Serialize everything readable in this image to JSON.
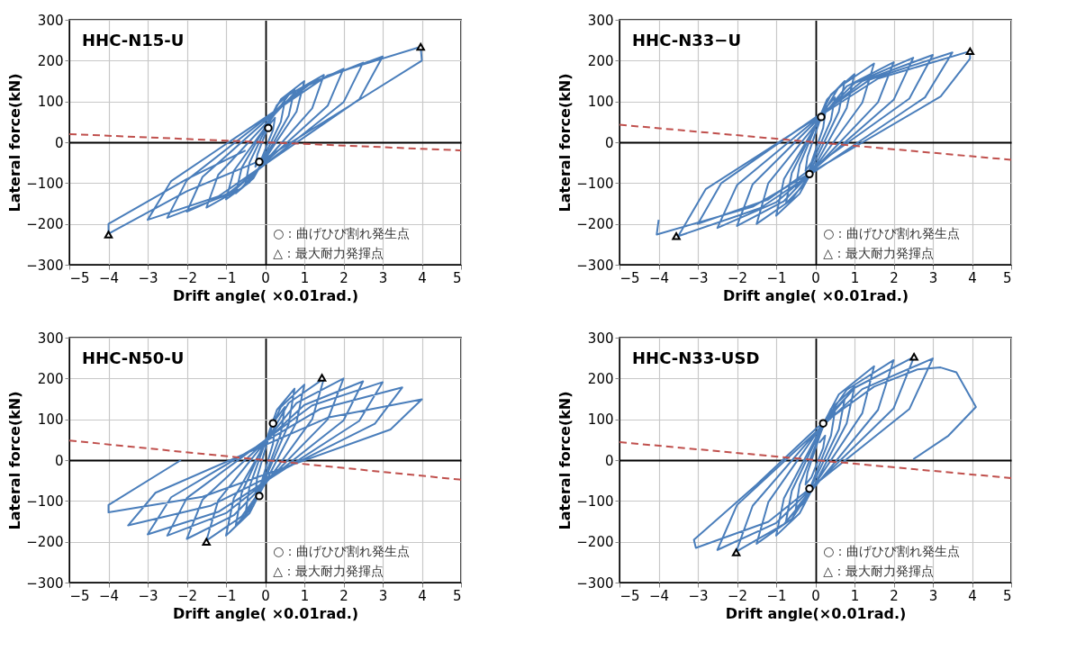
{
  "chart_data": [
    {
      "type": "line",
      "title": "HHC-N15-U",
      "xlabel": "Drift angle( ×0.01rad.)",
      "ylabel": "Lateral force(kN)",
      "xlim": [
        -5,
        5
      ],
      "xticks": [
        -5,
        -4,
        -3,
        -2,
        -1,
        0,
        1,
        2,
        3,
        4,
        5
      ],
      "ylim": [
        -300,
        300
      ],
      "yticks": [
        -300,
        -200,
        -100,
        0,
        100,
        200,
        300
      ],
      "grid": true,
      "annotations": [
        "○：曲げひび割れ発生点",
        "△：最大耐力発揮点"
      ],
      "series": [
        {
          "type": "line",
          "color": "#4a7ebb",
          "line_style": "solid",
          "x": [
            0.1,
            0.25,
            0.2,
            -0.1,
            -0.25,
            -0.2,
            0.2,
            0.5,
            0.4,
            -0.2,
            -0.5,
            -0.4,
            0.3,
            0.75,
            0.6,
            -0.3,
            -0.75,
            -0.6,
            0.4,
            1,
            0.8,
            -0.4,
            -1,
            -0.8,
            0.6,
            1.5,
            1.2,
            -0.6,
            -1.5,
            -1.2,
            0.8,
            2,
            1.6,
            -0.8,
            -2,
            -1.6,
            1,
            2.5,
            2,
            -1,
            -2.5,
            -2,
            1.2,
            3,
            2.4,
            -1.2,
            -3,
            -2.4,
            1.6,
            3.97,
            4,
            2,
            0,
            -2,
            -4,
            -4,
            -2,
            -0.5
          ],
          "values": [
            42,
            60,
            30,
            -42,
            -60,
            -30,
            70,
            100,
            50,
            -70,
            -100,
            -50,
            91,
            130,
            65,
            -88,
            -125,
            -63,
            105,
            150,
            75,
            -98,
            -140,
            -70,
            116,
            165,
            83,
            -112,
            -160,
            -80,
            126,
            180,
            90,
            -119,
            -170,
            -85,
            137,
            195,
            98,
            -130,
            -185,
            -93,
            147,
            210,
            105,
            -133,
            -190,
            -95,
            164,
            234,
            200,
            80,
            -40,
            -120,
            -224,
            -200,
            -90,
            -20
          ]
        },
        {
          "type": "line",
          "color": "#c0504d",
          "line_style": "dashed",
          "x": [
            -5,
            5
          ],
          "values": [
            20,
            -20
          ]
        },
        {
          "type": "scatter",
          "marker": "circle",
          "color": "#000000",
          "x": [
            0.08,
            -0.15
          ],
          "values": [
            35,
            -48
          ]
        },
        {
          "type": "scatter",
          "marker": "triangle",
          "color": "#000000",
          "x": [
            3.97,
            -4.0
          ],
          "values": [
            234,
            -226
          ]
        }
      ]
    },
    {
      "type": "line",
      "title": "HHC-N33−U",
      "xlabel": "Drift angle( ×0.01rad.)",
      "ylabel": "Lateral force(kN)",
      "xlim": [
        -5,
        5
      ],
      "xticks": [
        -5,
        -4,
        -3,
        -2,
        -1,
        0,
        1,
        2,
        3,
        4,
        5
      ],
      "ylim": [
        -300,
        300
      ],
      "yticks": [
        -300,
        -200,
        -100,
        0,
        100,
        200,
        300
      ],
      "grid": true,
      "annotations": [
        "○：曲げひび割れ発生点",
        "△：最大耐力発揮点"
      ],
      "series": [
        {
          "type": "line",
          "color": "#4a7ebb",
          "line_style": "solid",
          "x": [
            0.1,
            0.25,
            0.2,
            -0.1,
            -0.25,
            -0.2,
            0.2,
            0.5,
            0.4,
            -0.2,
            -0.5,
            -0.4,
            0.3,
            0.75,
            0.6,
            -0.3,
            -0.75,
            -0.6,
            0.4,
            1,
            0.8,
            -0.4,
            -1,
            -0.8,
            0.6,
            1.5,
            1.2,
            -0.6,
            -1.5,
            -1.2,
            0.8,
            2,
            1.6,
            -0.8,
            -2,
            -1.6,
            1,
            2.5,
            2,
            -1,
            -2.5,
            -2,
            1.2,
            3,
            2.4,
            -1.2,
            -3,
            -2.4,
            1.4,
            3.5,
            2.8,
            -1.4,
            -3.5,
            -2.8,
            1.6,
            3.95,
            3.95,
            3.2,
            -1.6,
            -4.05,
            -4
          ],
          "values": [
            49,
            70,
            35,
            -49,
            -70,
            -35,
            77,
            110,
            55,
            -77,
            -110,
            -55,
            105,
            150,
            75,
            -105,
            -150,
            -75,
            117,
            167,
            84,
            -126,
            -180,
            -90,
            135,
            193,
            97,
            -140,
            -200,
            -100,
            137,
            196,
            98,
            -144,
            -205,
            -103,
            145,
            207,
            104,
            -147,
            -210,
            -105,
            150,
            214,
            107,
            -140,
            -200,
            -100,
            154,
            220,
            110,
            -161,
            -230,
            -115,
            156,
            223,
            205,
            112,
            -158,
            -226,
            -190
          ]
        },
        {
          "type": "line",
          "color": "#c0504d",
          "line_style": "dashed",
          "x": [
            -5,
            5
          ],
          "values": [
            43,
            -43
          ]
        },
        {
          "type": "scatter",
          "marker": "circle",
          "color": "#000000",
          "x": [
            0.15,
            -0.15
          ],
          "values": [
            62,
            -78
          ]
        },
        {
          "type": "scatter",
          "marker": "triangle",
          "color": "#000000",
          "x": [
            3.95,
            -3.55
          ],
          "values": [
            223,
            -230
          ]
        }
      ]
    },
    {
      "type": "line",
      "title": "HHC-N50-U",
      "xlabel": "Drift angle( ×0.01rad.)",
      "ylabel": "Lateral force(kN)",
      "xlim": [
        -5,
        5
      ],
      "xticks": [
        -5,
        -4,
        -3,
        -2,
        -1,
        0,
        1,
        2,
        3,
        4,
        5
      ],
      "ylim": [
        -300,
        300
      ],
      "yticks": [
        -300,
        -200,
        -100,
        0,
        100,
        200,
        300
      ],
      "grid": true,
      "annotations": [
        "○：曲げひび割れ発生点",
        "△：最大耐力発揮点"
      ],
      "series": [
        {
          "type": "line",
          "color": "#4a7ebb",
          "line_style": "solid",
          "x": [
            0.1,
            0.25,
            0.2,
            -0.1,
            -0.25,
            -0.2,
            0.2,
            0.5,
            0.4,
            -0.2,
            -0.5,
            -0.4,
            0.3,
            0.75,
            0.6,
            -0.3,
            -0.75,
            -0.6,
            0.4,
            1,
            0.8,
            -0.4,
            -1,
            -0.8,
            0.6,
            1.5,
            1.2,
            -0.6,
            -1.5,
            -1.2,
            0.8,
            2,
            1.6,
            -0.8,
            -2,
            -1.6,
            1,
            2.5,
            2,
            -1,
            -2.5,
            -2,
            1.2,
            3,
            2.4,
            -1.2,
            -3,
            -2.4,
            1.4,
            3.5,
            2.8,
            -1.4,
            -3.5,
            -2.8,
            1.6,
            4,
            3.2,
            -1.6,
            -4,
            -4,
            -2.15
          ],
          "values": [
            56,
            80,
            40,
            -56,
            -80,
            -40,
            91,
            130,
            65,
            -91,
            -130,
            -65,
            123,
            175,
            88,
            -112,
            -160,
            -80,
            130,
            185,
            93,
            -130,
            -185,
            -93,
            140,
            200,
            100,
            -138,
            -197,
            -99,
            140,
            200,
            100,
            -135,
            -193,
            -97,
            135,
            193,
            97,
            -130,
            -185,
            -93,
            134,
            191,
            96,
            -127,
            -182,
            -91,
            125,
            178,
            89,
            -112,
            -160,
            -80,
            104,
            149,
            75,
            -90,
            -128,
            -110,
            0
          ]
        },
        {
          "type": "line",
          "color": "#c0504d",
          "line_style": "dashed",
          "x": [
            -5,
            5
          ],
          "values": [
            48,
            -48
          ]
        },
        {
          "type": "scatter",
          "marker": "circle",
          "color": "#000000",
          "x": [
            0.2,
            -0.15
          ],
          "values": [
            90,
            -88
          ]
        },
        {
          "type": "scatter",
          "marker": "triangle",
          "color": "#000000",
          "x": [
            1.45,
            -1.5
          ],
          "values": [
            202,
            -200
          ]
        }
      ]
    },
    {
      "type": "line",
      "title": "HHC-N33-USD",
      "xlabel": "Drift angle(×0.01rad.)",
      "ylabel": "Lateral force(kN)",
      "xlim": [
        -5,
        5
      ],
      "xticks": [
        -5,
        -4,
        -3,
        -2,
        -1,
        0,
        1,
        2,
        3,
        4,
        5
      ],
      "ylim": [
        -300,
        300
      ],
      "yticks": [
        -300,
        -200,
        -100,
        0,
        100,
        200,
        300
      ],
      "grid": true,
      "annotations": [
        "○：曲げひび割れ発生点",
        "△：最大耐力発揮点"
      ],
      "series": [
        {
          "type": "line",
          "color": "#4a7ebb",
          "line_style": "solid",
          "x": [
            0.1,
            0.25,
            0.2,
            -0.1,
            -0.25,
            -0.2,
            0.2,
            0.5,
            0.4,
            -0.2,
            -0.5,
            -0.4,
            0.3,
            0.75,
            0.6,
            -0.3,
            -0.75,
            -0.6,
            0.4,
            1,
            0.8,
            -0.4,
            -1,
            -0.8,
            0.6,
            1.5,
            1.2,
            -0.6,
            -1.5,
            -1.2,
            0.8,
            2,
            1.6,
            -0.8,
            -2.02,
            -1.6,
            1,
            2.52,
            2,
            -1,
            -2.5,
            -2,
            1.2,
            3,
            2.4,
            -1.2,
            -3.05,
            -3.1,
            -1.5,
            0.05,
            1.5,
            2.6,
            3.2,
            3.6,
            4.1,
            3.4,
            2.5
          ],
          "values": [
            42,
            60,
            30,
            -42,
            -60,
            -30,
            84,
            120,
            60,
            -84,
            -120,
            -60,
            105,
            150,
            75,
            -105,
            -150,
            -75,
            126,
            180,
            90,
            -130,
            -185,
            -93,
            161,
            230,
            115,
            -144,
            -205,
            -103,
            172,
            245,
            123,
            -157,
            -224,
            -112,
            177,
            253,
            127,
            -154,
            -220,
            -110,
            174,
            249,
            125,
            -151,
            -215,
            -195,
            -60,
            80,
            180,
            222,
            227,
            215,
            130,
            60,
            2
          ]
        },
        {
          "type": "line",
          "color": "#c0504d",
          "line_style": "dashed",
          "x": [
            -5,
            5
          ],
          "values": [
            44,
            -44
          ]
        },
        {
          "type": "scatter",
          "marker": "circle",
          "color": "#000000",
          "x": [
            0.2,
            -0.15
          ],
          "values": [
            90,
            -70
          ]
        },
        {
          "type": "scatter",
          "marker": "triangle",
          "color": "#000000",
          "x": [
            2.52,
            -2.02
          ],
          "values": [
            253,
            -226
          ]
        }
      ]
    }
  ]
}
